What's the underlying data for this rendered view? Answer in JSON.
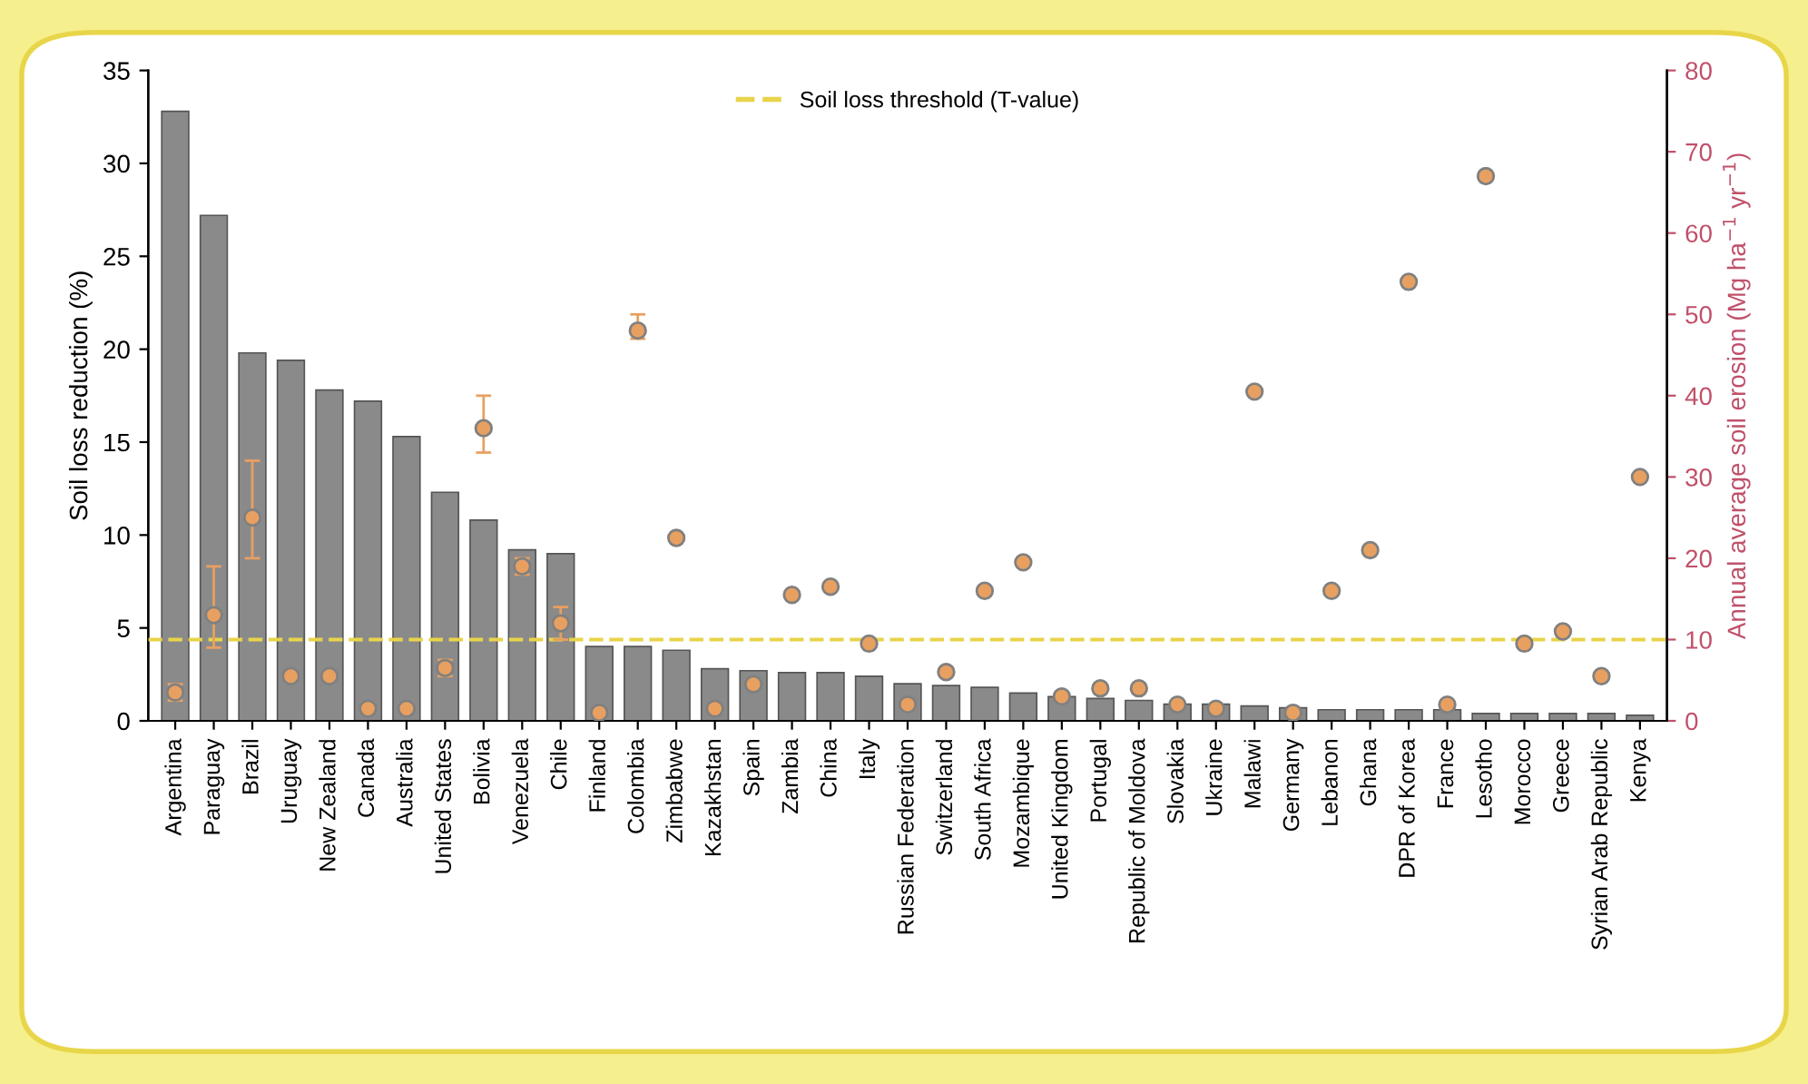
{
  "chart_data": {
    "type": "bar",
    "ylabel": "Soil loss reduction (%)",
    "y2label": "Annual average soil erosion (Mg ha$^{−1}$ yr$^{−1}$)",
    "categories": [
      "Argentina",
      "Paraguay",
      "Brazil",
      "Uruguay",
      "New Zealand",
      "Canada",
      "Australia",
      "United States",
      "Bolivia",
      "Venezuela",
      "Chile",
      "Finland",
      "Colombia",
      "Zimbabwe",
      "Kazakhstan",
      "Spain",
      "Zambia",
      "China",
      "Italy",
      "Russian Federation",
      "Switzerland",
      "South Africa",
      "Mozambique",
      "United Kingdom",
      "Portugal",
      "Republic of Moldova",
      "Slovakia",
      "Ukraine",
      "Malawi",
      "Germany",
      "Lebanon",
      "Ghana",
      "DPR of Korea",
      "France",
      "Lesotho",
      "Morocco",
      "Greece",
      "Syrian Arab Republic",
      "Kenya"
    ],
    "series": [
      {
        "color": "#8a8a8a",
        "values": [
          32.8,
          27.2,
          19.8,
          19.4,
          17.8,
          17.2,
          15.3,
          12.3,
          10.8,
          9.2,
          9.0,
          4.0,
          4.0,
          3.8,
          2.8,
          2.7,
          2.6,
          2.6,
          2.4,
          2.0,
          1.9,
          1.8,
          1.5,
          1.3,
          1.2,
          1.1,
          0.9,
          0.9,
          0.8,
          0.7,
          0.6,
          0.6,
          0.6,
          0.6,
          0.4,
          0.4,
          0.4,
          0.4,
          0.3
        ]
      },
      {
        "type": "scatter",
        "axis": "y2",
        "color": "#e8a060",
        "marker": "circle",
        "values": [
          3.5,
          13,
          25,
          5.5,
          5.5,
          1.5,
          1.5,
          6.5,
          36,
          19,
          12,
          1,
          48,
          22.5,
          1.5,
          4.5,
          15.5,
          16.5,
          9.5,
          2,
          6,
          16,
          19.5,
          3,
          4,
          4,
          2,
          1.5,
          40.5,
          1,
          16,
          21,
          54,
          2,
          67,
          9.5,
          11,
          5.5,
          30
        ],
        "errors": [
          1,
          [
            9,
            19
          ],
          [
            20,
            32
          ],
          null,
          null,
          null,
          null,
          1,
          [
            33,
            40
          ],
          1,
          [
            10,
            14
          ],
          null,
          [
            47,
            50
          ],
          null,
          null,
          null,
          null,
          null,
          null,
          null,
          null,
          null,
          null,
          null,
          null,
          null,
          null,
          null,
          null,
          null,
          null,
          null,
          null,
          null,
          null,
          null,
          null,
          null,
          null
        ]
      }
    ],
    "ylim": [
      0,
      35
    ],
    "yticks": [
      0,
      5,
      10,
      15,
      20,
      25,
      30,
      35
    ],
    "y2lim": [
      0,
      80
    ],
    "y2ticks": [
      0,
      10,
      20,
      30,
      40,
      50,
      60,
      70,
      80
    ],
    "ref_lines": [
      {
        "axis": "y2",
        "value": 10,
        "label": "Soil loss threshold (T-value)",
        "color": "#e8d44a",
        "line_style": "dashed"
      }
    ],
    "legend": "top",
    "grid": false
  }
}
